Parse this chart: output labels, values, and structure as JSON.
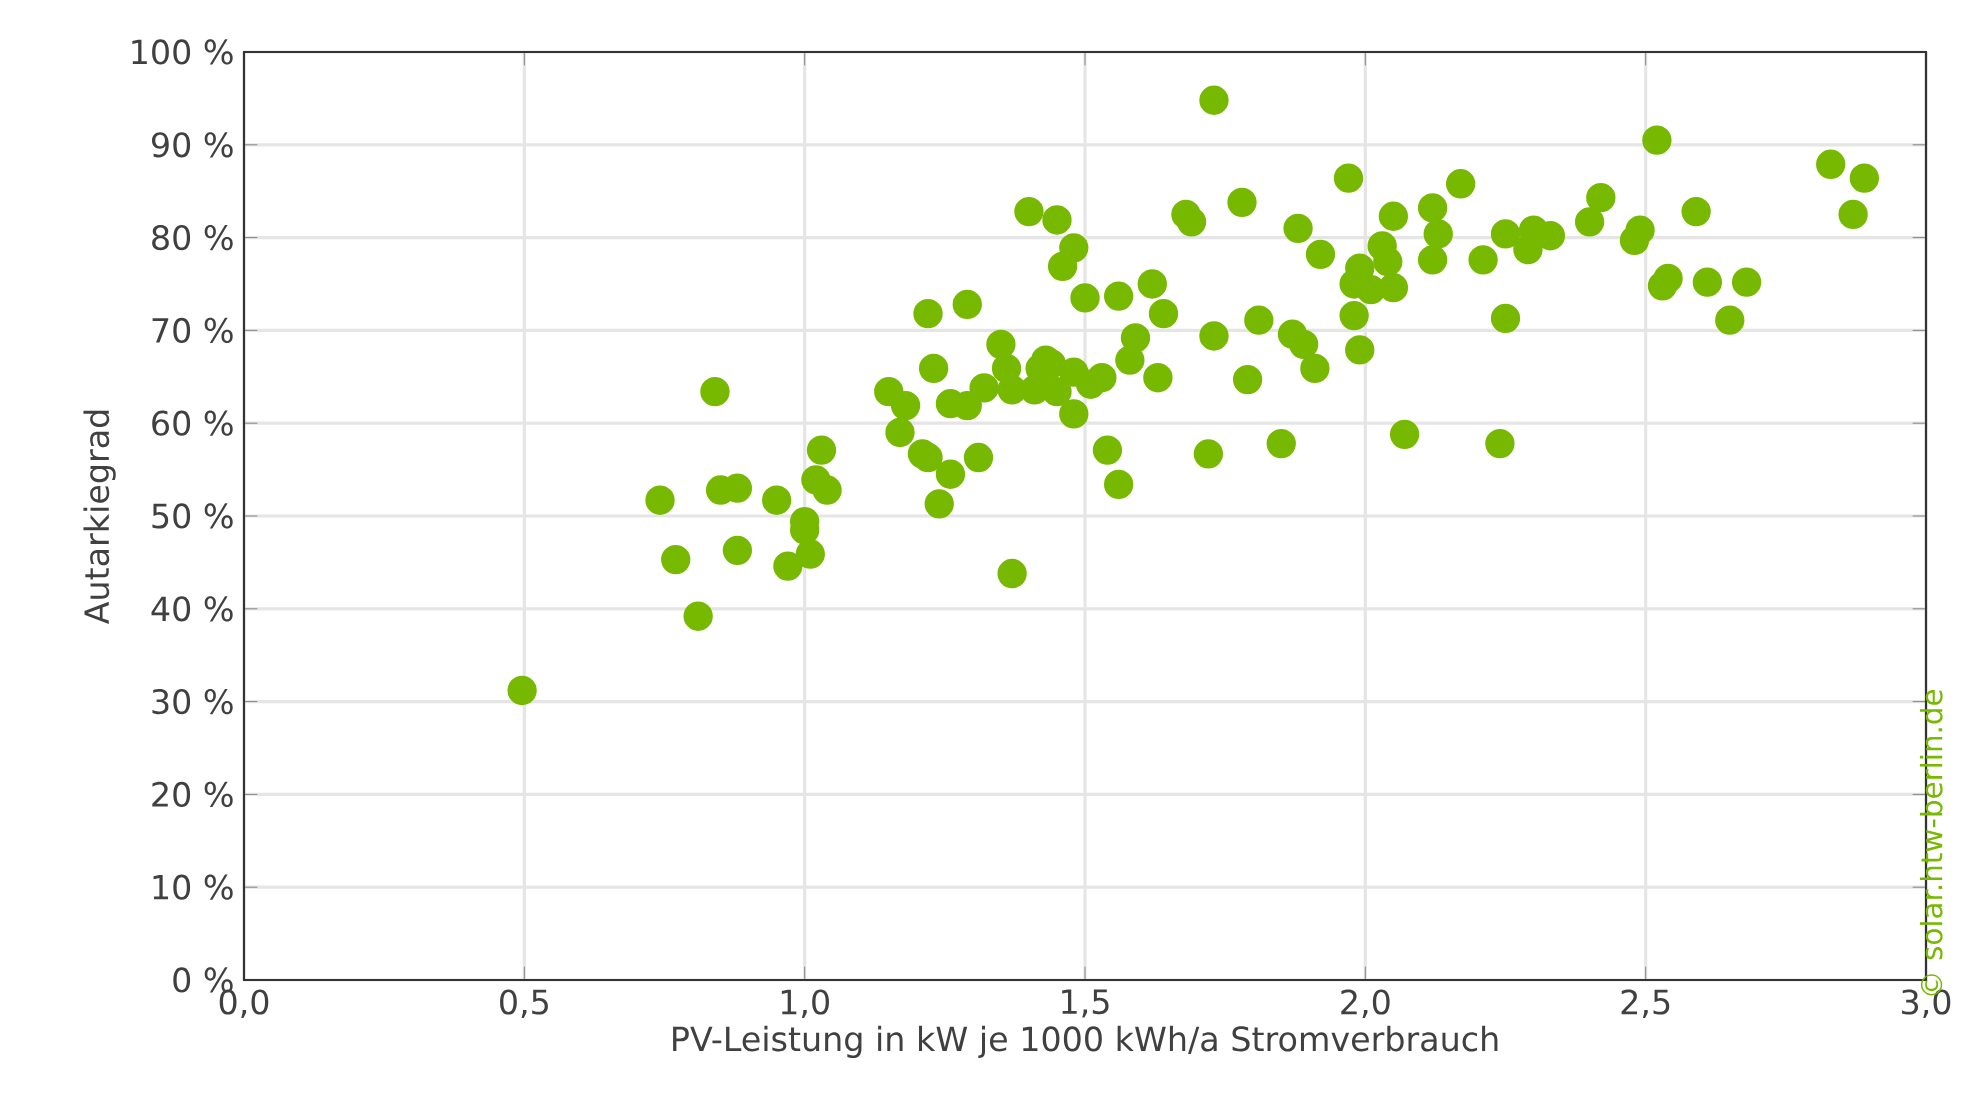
{
  "chart_data": {
    "type": "scatter",
    "xlabel": "PV-Leistung in kW je 1000 kWh/a Stromverbrauch",
    "ylabel": "Autarkiegrad",
    "annotations": [
      "© solar.htw-berlin.de"
    ],
    "xlim": [
      0,
      3
    ],
    "ylim": [
      0,
      100
    ],
    "xticks": [
      {
        "value": 0,
        "label": "0,0"
      },
      {
        "value": 0.5,
        "label": "0,5"
      },
      {
        "value": 1,
        "label": "1,0"
      },
      {
        "value": 1.5,
        "label": "1,5"
      },
      {
        "value": 2,
        "label": "2,0"
      },
      {
        "value": 2.5,
        "label": "2,5"
      },
      {
        "value": 3,
        "label": "3,0"
      }
    ],
    "yticks": [
      {
        "value": 0,
        "label": "0 %"
      },
      {
        "value": 10,
        "label": "10 %"
      },
      {
        "value": 20,
        "label": "20 %"
      },
      {
        "value": 30,
        "label": "30 %"
      },
      {
        "value": 40,
        "label": "40 %"
      },
      {
        "value": 50,
        "label": "50 %"
      },
      {
        "value": 60,
        "label": "60 %"
      },
      {
        "value": 70,
        "label": "70 %"
      },
      {
        "value": 80,
        "label": "80 %"
      },
      {
        "value": 90,
        "label": "90 %"
      },
      {
        "value": 100,
        "label": "100 %"
      }
    ],
    "grid": true,
    "marker": "circle",
    "series": [
      {
        "color": "#77b900",
        "x": [
          0.496,
          0.742,
          0.77,
          0.81,
          0.84,
          0.85,
          0.88,
          0.88,
          0.95,
          0.97,
          1.0,
          1.0,
          1.01,
          1.02,
          1.03,
          1.04,
          1.15,
          1.17,
          1.18,
          1.21,
          1.22,
          1.22,
          1.23,
          1.24,
          1.26,
          1.26,
          1.29,
          1.29,
          1.31,
          1.32,
          1.35,
          1.36,
          1.37,
          1.37,
          1.4,
          1.41,
          1.42,
          1.43,
          1.44,
          1.45,
          1.45,
          1.46,
          1.48,
          1.48,
          1.48,
          1.5,
          1.51,
          1.53,
          1.54,
          1.56,
          1.56,
          1.58,
          1.59,
          1.62,
          1.63,
          1.64,
          1.68,
          1.69,
          1.72,
          1.73,
          1.73,
          1.78,
          1.79,
          1.81,
          1.85,
          1.87,
          1.88,
          1.89,
          1.91,
          1.92,
          1.97,
          1.98,
          1.98,
          1.99,
          1.99,
          2.01,
          2.03,
          2.04,
          2.05,
          2.05,
          2.07,
          2.12,
          2.12,
          2.13,
          2.17,
          2.21,
          2.24,
          2.25,
          2.25,
          2.29,
          2.3,
          2.33,
          2.4,
          2.42,
          2.48,
          2.49,
          2.52,
          2.53,
          2.54,
          2.59,
          2.61,
          2.65,
          2.68,
          2.83,
          2.87,
          2.89
        ],
        "values": [
          31.2,
          51.7,
          45.3,
          39.2,
          63.4,
          52.8,
          53.0,
          46.3,
          51.7,
          44.6,
          48.5,
          49.4,
          45.9,
          53.9,
          57.1,
          52.8,
          63.4,
          59.0,
          61.9,
          56.7,
          56.3,
          71.8,
          65.9,
          51.3,
          62.1,
          54.5,
          72.8,
          61.9,
          56.3,
          63.8,
          68.5,
          65.9,
          43.8,
          63.6,
          82.8,
          63.6,
          65.9,
          66.8,
          66.4,
          63.4,
          81.9,
          76.9,
          78.9,
          65.5,
          61.0,
          73.5,
          64.2,
          64.9,
          57.1,
          73.7,
          53.4,
          66.8,
          69.2,
          75.0,
          64.9,
          71.8,
          82.5,
          81.7,
          56.7,
          69.4,
          94.8,
          83.8,
          64.7,
          71.1,
          57.8,
          69.6,
          81.0,
          68.5,
          65.9,
          78.2,
          86.4,
          71.6,
          75.0,
          67.9,
          76.7,
          74.4,
          79.1,
          77.4,
          82.3,
          74.6,
          58.8,
          83.2,
          77.6,
          80.4,
          85.8,
          77.6,
          57.8,
          80.4,
          71.3,
          78.7,
          80.8,
          80.2,
          81.7,
          84.3,
          79.7,
          80.8,
          90.5,
          74.8,
          75.6,
          82.8,
          75.2,
          71.1,
          75.2,
          87.9,
          82.5,
          86.4
        ]
      }
    ]
  }
}
